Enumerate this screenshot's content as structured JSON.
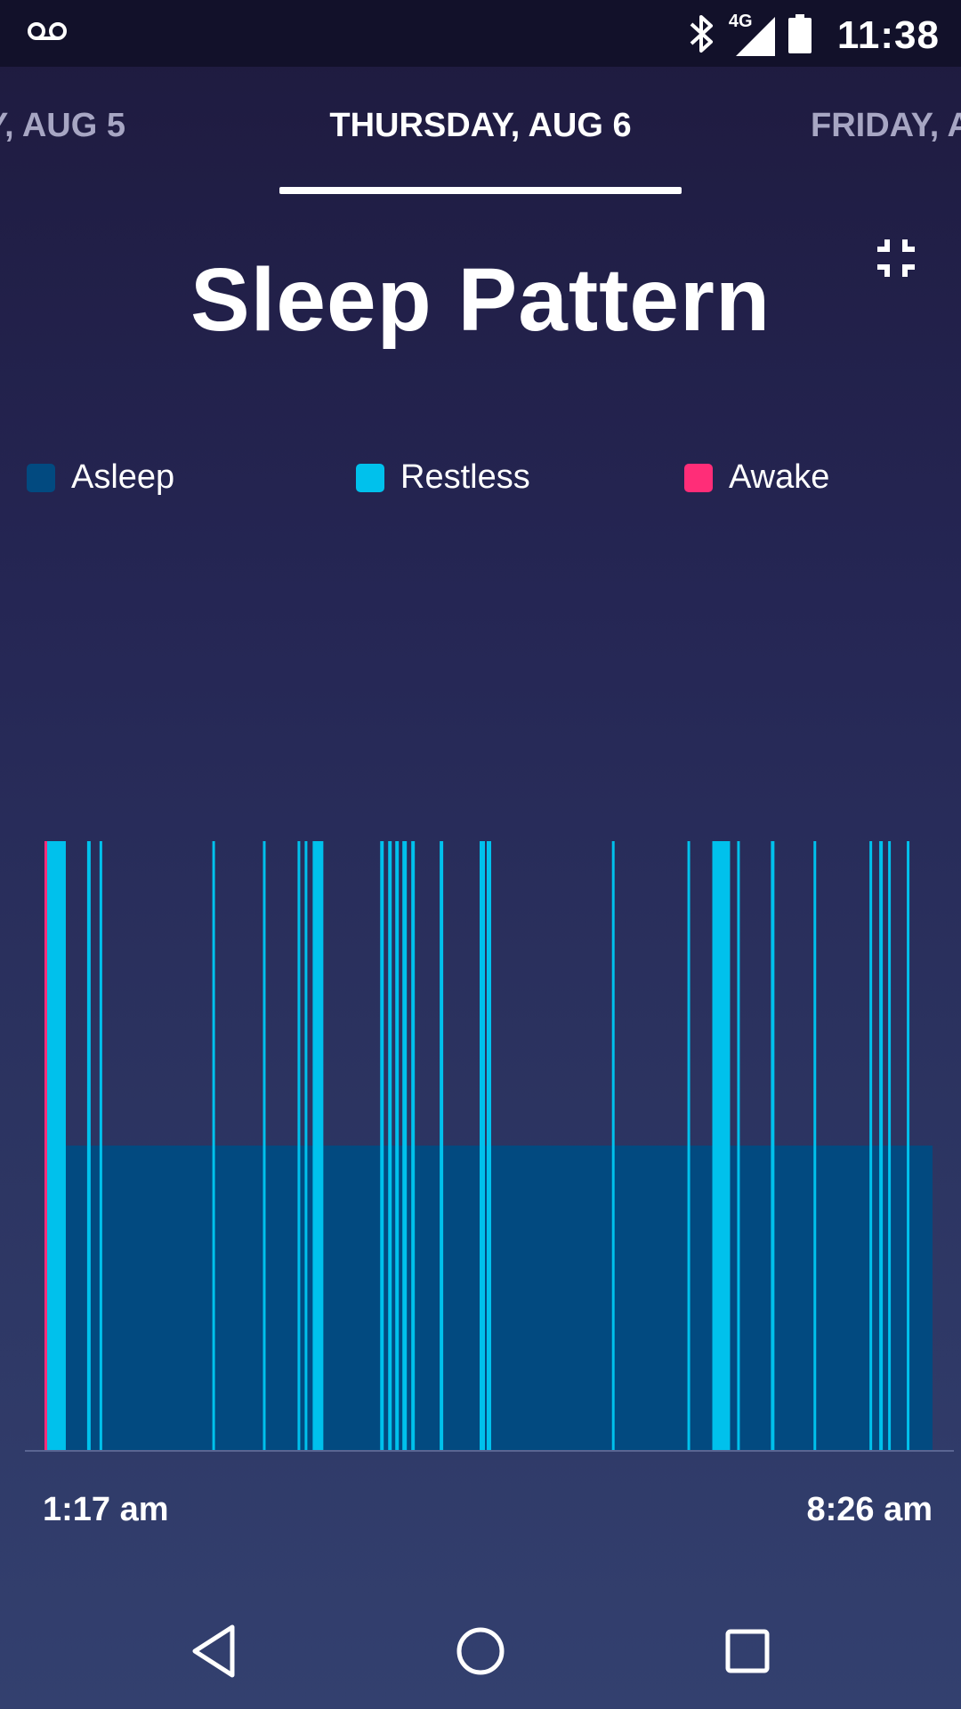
{
  "status_bar": {
    "clock": "11:38",
    "network": "4G",
    "icons": [
      "voicemail-icon",
      "bluetooth-icon",
      "signal-icon",
      "battery-icon"
    ]
  },
  "date_tabs": {
    "previous": "Y, AUG 5",
    "current": "THURSDAY, AUG 6",
    "next": "FRIDAY, A"
  },
  "page": {
    "title": "Sleep Pattern",
    "collapse_icon": "collapse-icon"
  },
  "legend": [
    {
      "label": "Asleep",
      "color": "#024a80"
    },
    {
      "label": "Restless",
      "color": "#00c1ec"
    },
    {
      "label": "Awake",
      "color": "#ff2d78"
    }
  ],
  "chart_data": {
    "type": "area",
    "x_start": "1:17 am",
    "x_end": "8:26 am",
    "series_levels": {
      "asleep": 1,
      "restless": 2,
      "awake": 3
    },
    "colors": {
      "asleep": "#024a80",
      "restless": "#00c1ec",
      "awake": "#ff2d78"
    },
    "awake_segments": [
      [
        0.0,
        0.003
      ]
    ],
    "restless_segments": [
      [
        0.003,
        0.024
      ],
      [
        0.048,
        0.052
      ],
      [
        0.062,
        0.065
      ],
      [
        0.189,
        0.192
      ],
      [
        0.246,
        0.249
      ],
      [
        0.285,
        0.288
      ],
      [
        0.293,
        0.296
      ],
      [
        0.302,
        0.314
      ],
      [
        0.378,
        0.382
      ],
      [
        0.387,
        0.391
      ],
      [
        0.395,
        0.399
      ],
      [
        0.403,
        0.408
      ],
      [
        0.413,
        0.417
      ],
      [
        0.445,
        0.449
      ],
      [
        0.49,
        0.496
      ],
      [
        0.498,
        0.503
      ],
      [
        0.639,
        0.642
      ],
      [
        0.724,
        0.727
      ],
      [
        0.752,
        0.772
      ],
      [
        0.78,
        0.783
      ],
      [
        0.818,
        0.822
      ],
      [
        0.866,
        0.869
      ],
      [
        0.929,
        0.932
      ],
      [
        0.94,
        0.944
      ],
      [
        0.95,
        0.953
      ],
      [
        0.971,
        0.974
      ]
    ]
  },
  "time_axis": {
    "start": "1:17 am",
    "end": "8:26 am"
  },
  "nav": {
    "back": "back-icon",
    "home": "home-icon",
    "recents": "recents-icon"
  }
}
